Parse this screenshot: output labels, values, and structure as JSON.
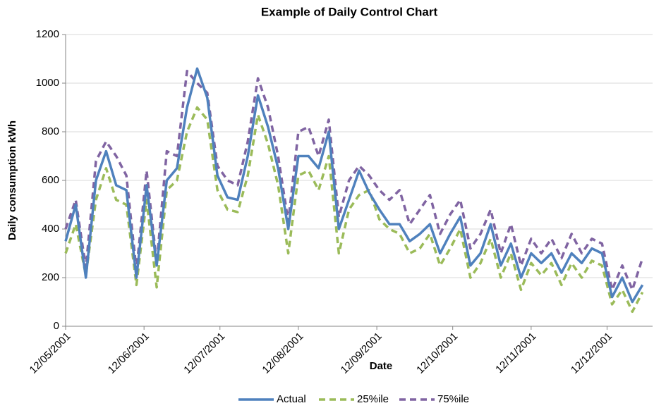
{
  "chart_data": {
    "type": "line",
    "title": "Example of Daily Control Chart",
    "x_label": "Date",
    "y_label": "Daily consumption kWh",
    "x": [
      "12/05/2001",
      "16/05/2001",
      "20/05/2001",
      "24/05/2001",
      "28/05/2001",
      "01/06/2001",
      "05/06/2001",
      "09/06/2001",
      "13/06/2001",
      "17/06/2001",
      "21/06/2001",
      "25/06/2001",
      "29/06/2001",
      "03/07/2001",
      "07/07/2001",
      "11/07/2001",
      "15/07/2001",
      "19/07/2001",
      "23/07/2001",
      "27/07/2001",
      "31/07/2001",
      "04/08/2001",
      "08/08/2001",
      "12/08/2001",
      "16/08/2001",
      "20/08/2001",
      "24/08/2001",
      "28/08/2001",
      "01/09/2001",
      "05/09/2001",
      "09/09/2001",
      "13/09/2001",
      "17/09/2001",
      "21/09/2001",
      "25/09/2001",
      "29/09/2001",
      "03/10/2001",
      "07/10/2001",
      "11/10/2001",
      "15/10/2001",
      "19/10/2001",
      "23/10/2001",
      "27/10/2001",
      "31/10/2001",
      "04/11/2001",
      "08/11/2001",
      "12/11/2001",
      "16/11/2001",
      "20/11/2001",
      "24/11/2001",
      "28/11/2001",
      "02/12/2001",
      "06/12/2001",
      "10/12/2001",
      "14/12/2001",
      "18/12/2001",
      "22/12/2001",
      "26/12/2001"
    ],
    "series": [
      {
        "name": "Actual",
        "color": "#4f81bd",
        "dash": false,
        "values": [
          350,
          500,
          200,
          600,
          720,
          580,
          560,
          200,
          580,
          250,
          600,
          650,
          900,
          1060,
          940,
          620,
          530,
          520,
          700,
          950,
          820,
          650,
          400,
          700,
          700,
          650,
          800,
          400,
          520,
          640,
          550,
          480,
          420,
          420,
          350,
          380,
          420,
          300,
          380,
          450,
          250,
          300,
          420,
          250,
          340,
          200,
          300,
          260,
          300,
          220,
          300,
          260,
          320,
          300,
          120,
          200,
          100,
          170
        ]
      },
      {
        "name": "25%ile",
        "color": "#9bbb59",
        "dash": true,
        "values": [
          300,
          420,
          210,
          520,
          650,
          520,
          500,
          170,
          520,
          160,
          560,
          600,
          800,
          900,
          850,
          560,
          480,
          470,
          620,
          870,
          750,
          580,
          300,
          620,
          640,
          560,
          700,
          300,
          480,
          540,
          560,
          440,
          400,
          380,
          300,
          320,
          380,
          250,
          320,
          400,
          200,
          260,
          360,
          200,
          300,
          150,
          260,
          210,
          260,
          170,
          260,
          200,
          270,
          250,
          90,
          150,
          60,
          140
        ]
      },
      {
        "name": "75%ile",
        "color": "#8064a2",
        "dash": true,
        "values": [
          400,
          520,
          240,
          680,
          760,
          700,
          620,
          230,
          640,
          260,
          720,
          700,
          1050,
          1000,
          960,
          660,
          600,
          580,
          760,
          1020,
          900,
          700,
          430,
          800,
          820,
          700,
          850,
          450,
          600,
          660,
          620,
          560,
          520,
          560,
          420,
          480,
          540,
          380,
          460,
          520,
          320,
          380,
          480,
          300,
          420,
          250,
          360,
          300,
          360,
          280,
          380,
          300,
          360,
          340,
          150,
          250,
          150,
          280
        ]
      }
    ],
    "xlim": [
      "12/05/2001",
      "30/12/2001"
    ],
    "xticks": [
      "12/05/2001",
      "12/06/2001",
      "12/07/2001",
      "12/08/2001",
      "12/09/2001",
      "12/10/2001",
      "12/11/2001",
      "12/12/2001"
    ],
    "ylim": [
      0,
      1200
    ],
    "yticks": [
      0,
      200,
      400,
      600,
      800,
      1000,
      1200
    ],
    "grid": true,
    "legend": "bottom"
  }
}
